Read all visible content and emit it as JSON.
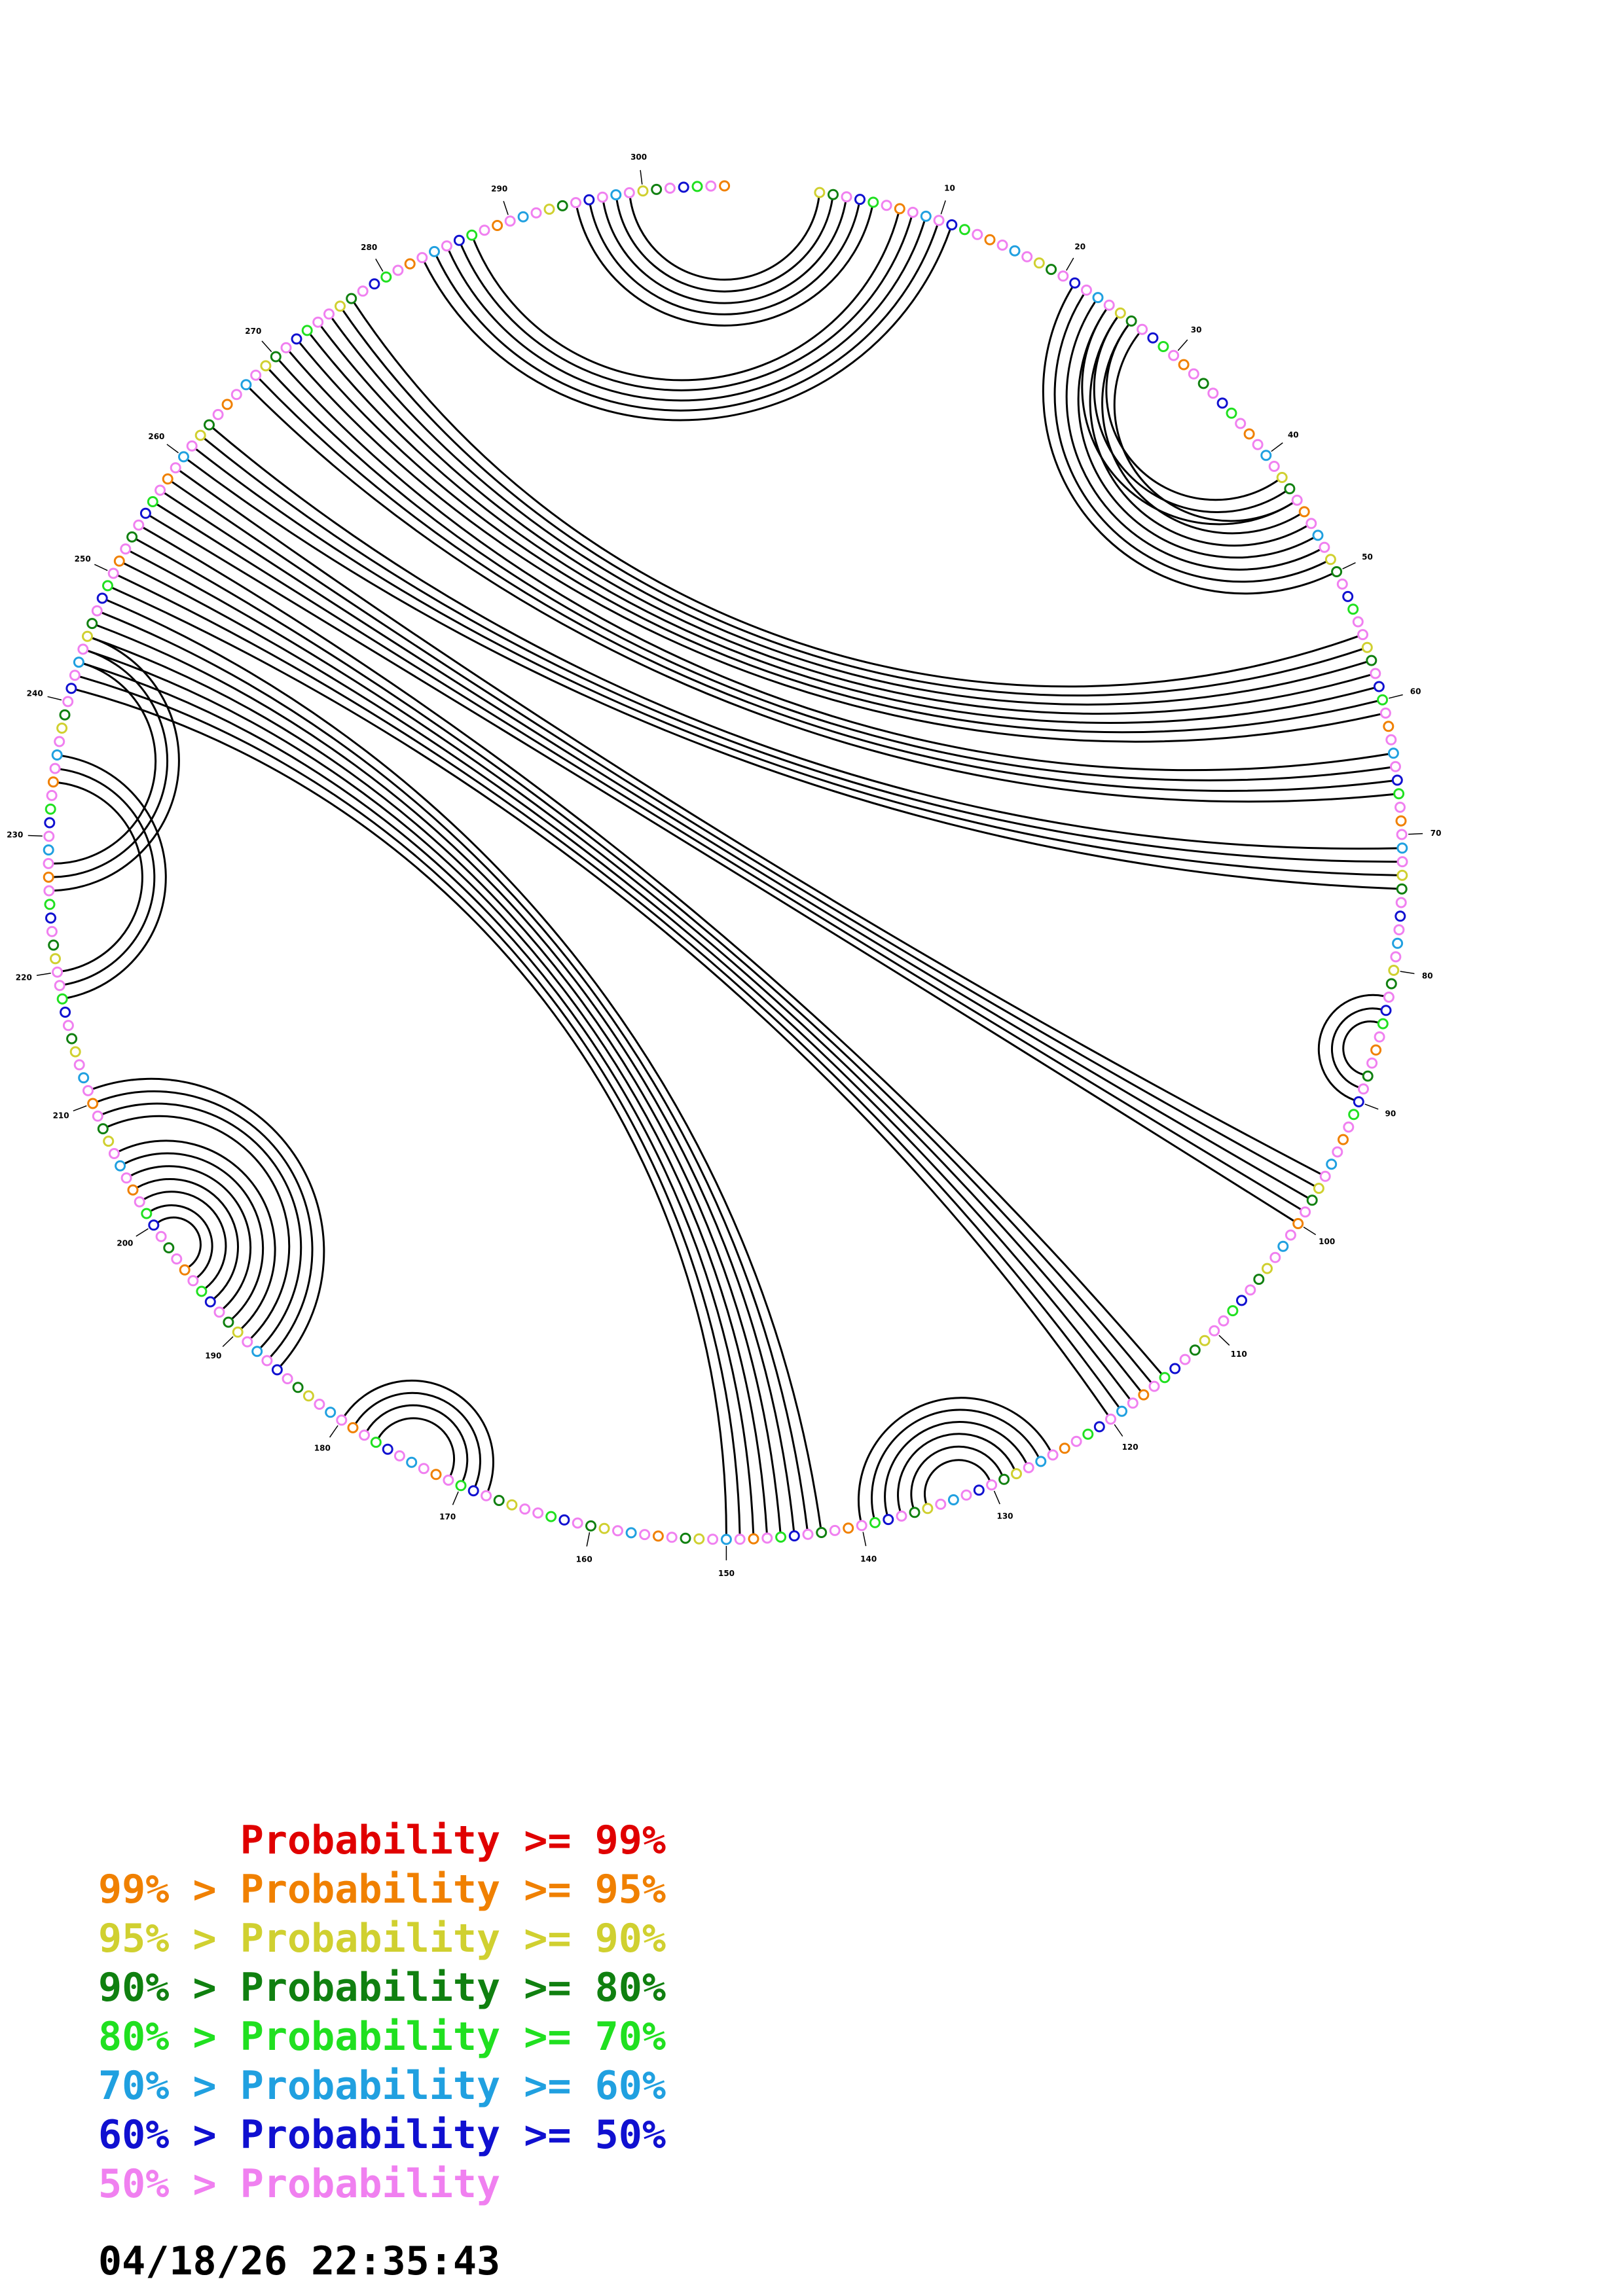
{
  "diagram": {
    "sequence_length": 306,
    "tick_labels": [
      "10",
      "20",
      "30",
      "40",
      "50",
      "60",
      "70",
      "80",
      "90",
      "100",
      "110",
      "120",
      "130",
      "140",
      "150",
      "160",
      "170",
      "180",
      "190",
      "200",
      "210",
      "220",
      "230",
      "240",
      "250",
      "260",
      "270",
      "280",
      "290",
      "300"
    ],
    "colors": {
      "p99": "#e00000",
      "p95": "#f08000",
      "p90": "#d0d030",
      "p80": "#108010",
      "p70": "#20e020",
      "p60": "#20a0e0",
      "p50": "#1010d0",
      "p0": "#f080f0"
    },
    "helices": [
      {
        "i": 1,
        "j": 299,
        "len": 5
      },
      {
        "i": 7,
        "j": 287,
        "len": 5
      },
      {
        "i": 21,
        "j": 50,
        "len": 7
      },
      {
        "i": 24,
        "j": 44,
        "len": 3
      },
      {
        "i": 55,
        "j": 277,
        "len": 7
      },
      {
        "i": 64,
        "j": 270,
        "len": 4
      },
      {
        "i": 71,
        "j": 263,
        "len": 4
      },
      {
        "i": 82,
        "j": 90,
        "len": 3
      },
      {
        "i": 96,
        "j": 259,
        "len": 5
      },
      {
        "i": 115,
        "j": 254,
        "len": 6
      },
      {
        "i": 125,
        "j": 140,
        "len": 6
      },
      {
        "i": 143,
        "j": 248,
        "len": 8
      },
      {
        "i": 168,
        "j": 180,
        "len": 4
      },
      {
        "i": 186,
        "j": 211,
        "len": 4
      },
      {
        "i": 190,
        "j": 206,
        "len": 7
      },
      {
        "i": 218,
        "j": 236,
        "len": 3
      },
      {
        "i": 226,
        "j": 245,
        "len": 3
      }
    ]
  },
  "legend": [
    {
      "prefix": "      ",
      "text": "Probability >= 99%",
      "color": "#e00000"
    },
    {
      "prefix": "99% > ",
      "text": "Probability >= 95%",
      "color": "#f08000"
    },
    {
      "prefix": "95% > ",
      "text": "Probability >= 90%",
      "color": "#d0d030"
    },
    {
      "prefix": "90% > ",
      "text": "Probability >= 80%",
      "color": "#108010"
    },
    {
      "prefix": "80% > ",
      "text": "Probability >= 70%",
      "color": "#20e020"
    },
    {
      "prefix": "70% > ",
      "text": "Probability >= 60%",
      "color": "#20a0e0"
    },
    {
      "prefix": "60% > ",
      "text": "Probability >= 50%",
      "color": "#1010d0"
    },
    {
      "prefix": "50% > ",
      "text": "Probability",
      "color": "#f080f0"
    }
  ],
  "timestamp": "04/18/26 22:35:43"
}
